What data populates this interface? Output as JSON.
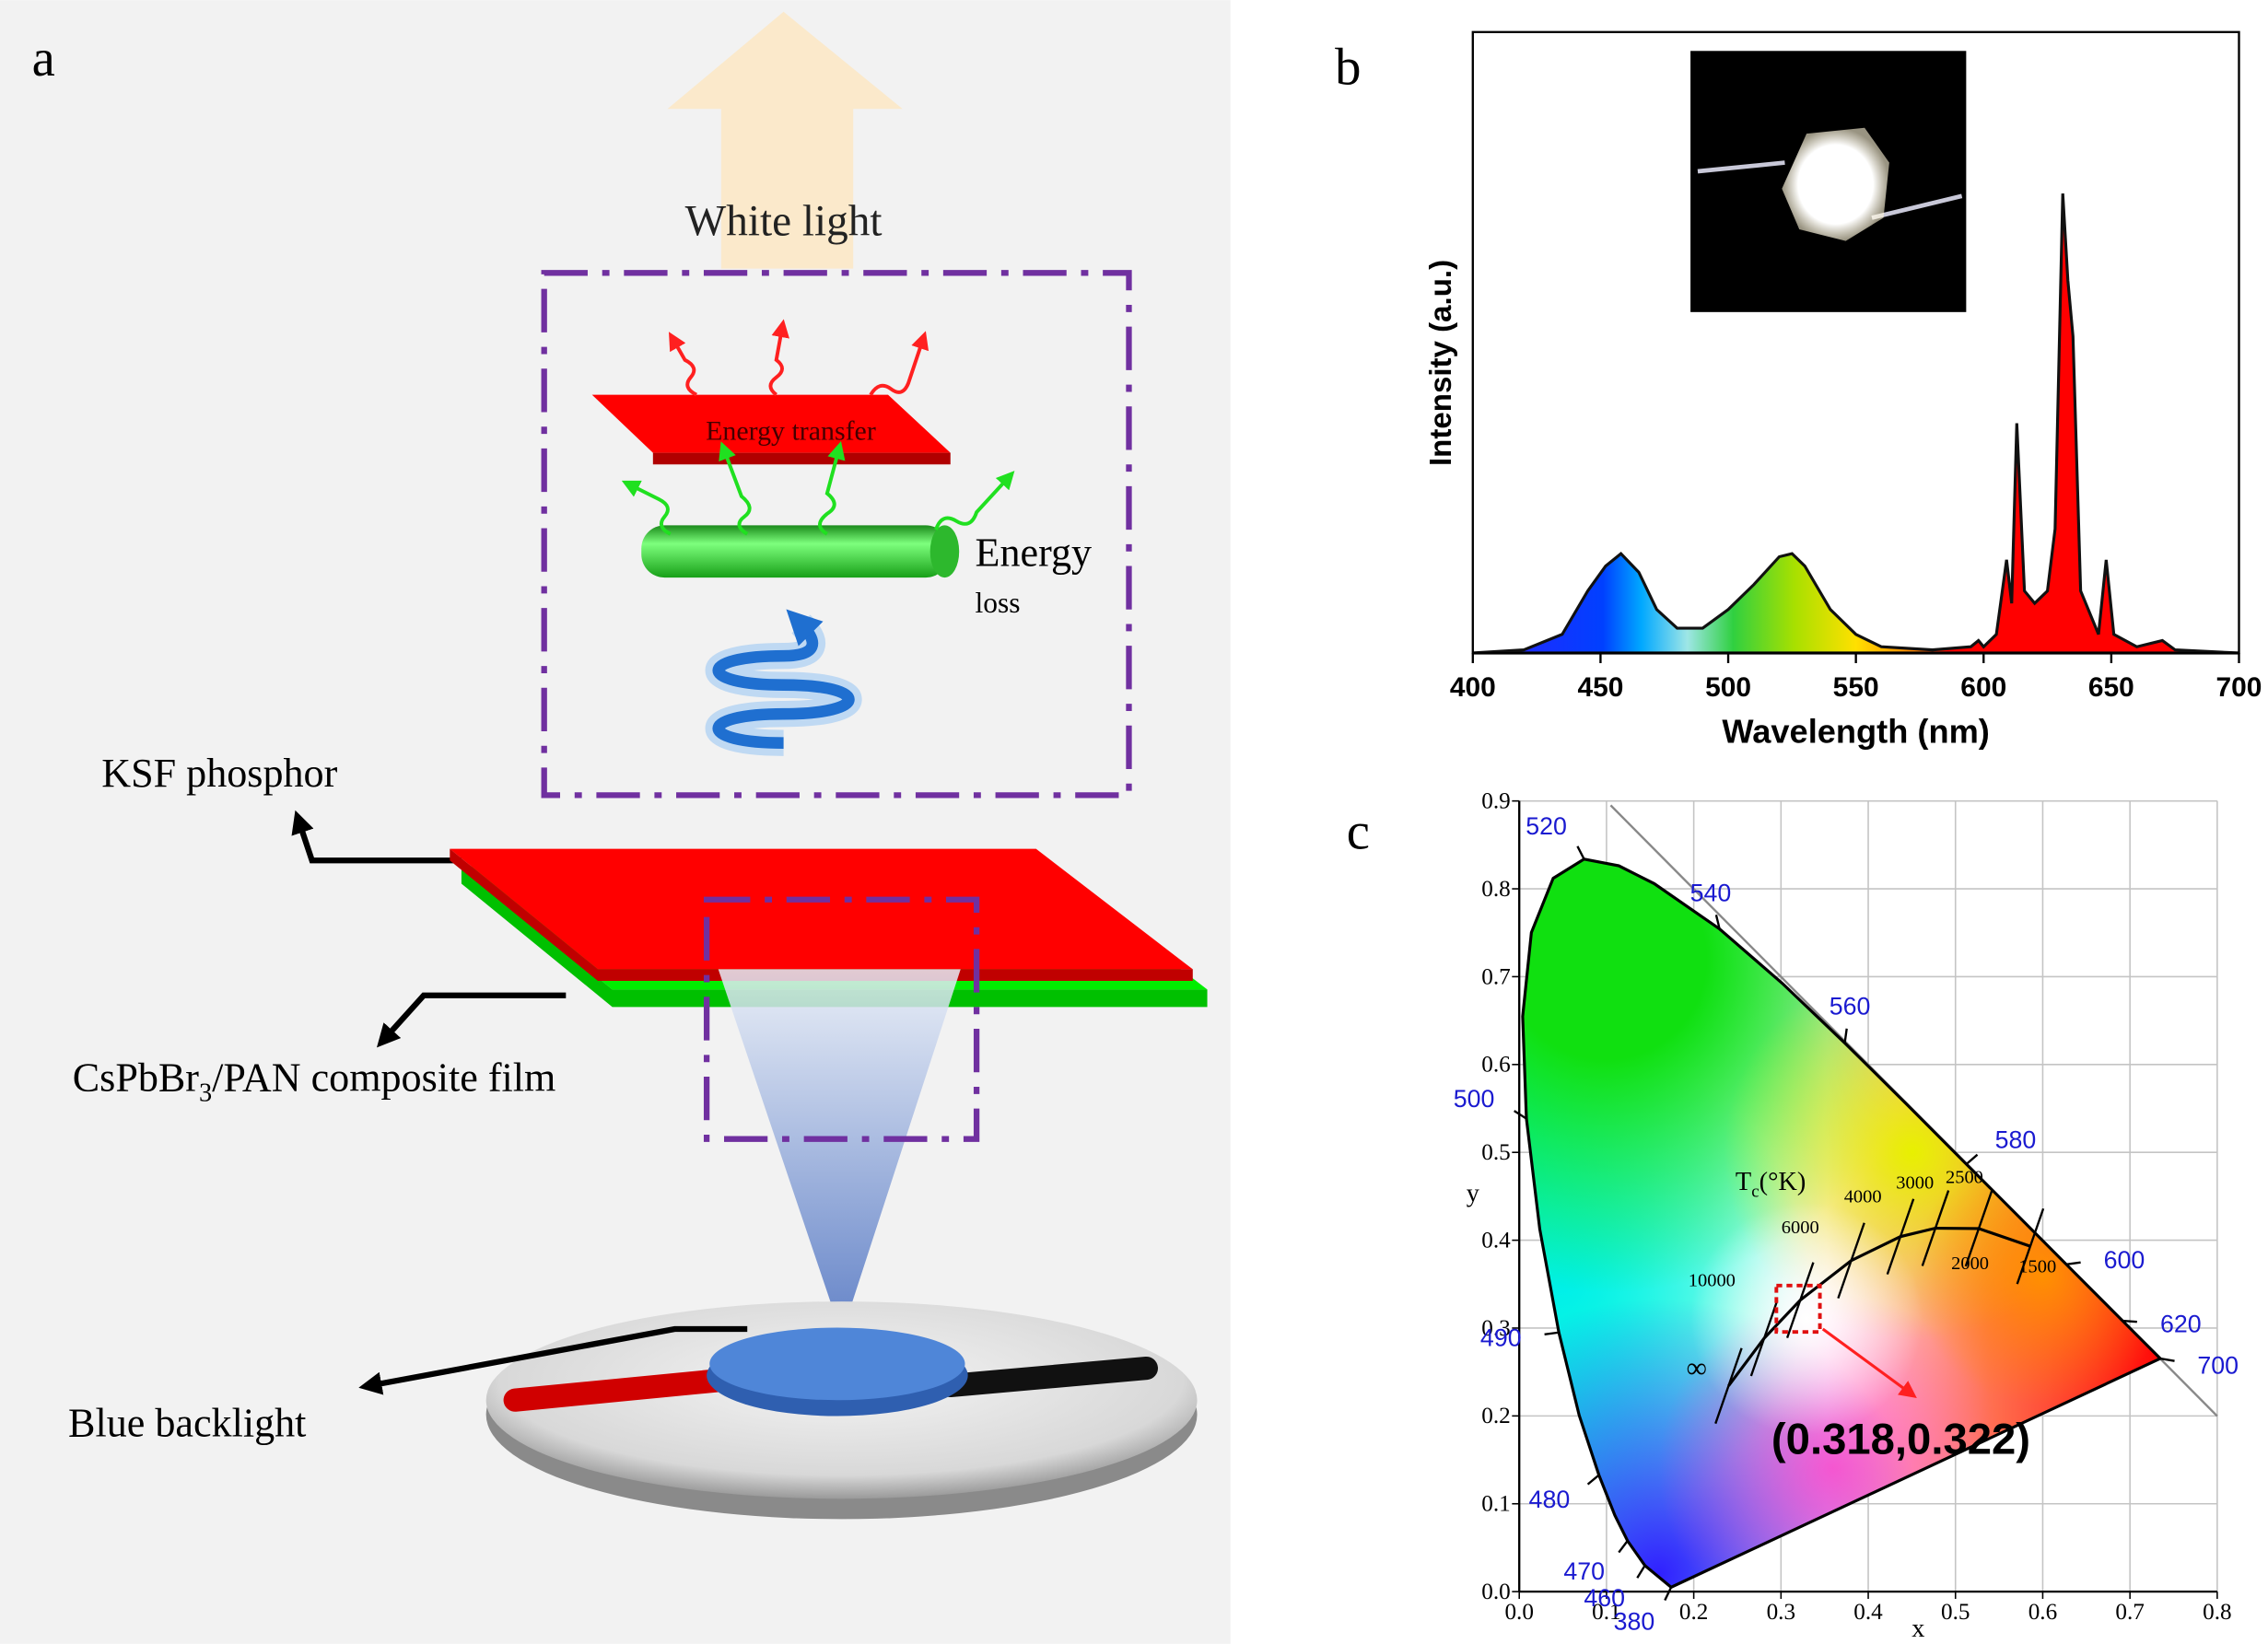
{
  "diagram": {
    "label": "a",
    "white_light": "White light",
    "energy_transfer": "Energy transfer",
    "energy": "Energy",
    "loss": "loss",
    "ksf": "KSF phosphor",
    "film": {
      "main": "CsPbBr",
      "sub": "3",
      "rest": "/PAN composite film"
    },
    "backlight": "Blue backlight"
  },
  "chart_data": [
    {
      "type": "area",
      "label": "b",
      "xlabel": "Wavelength (nm)",
      "ylabel": "Intensity (a.u.)",
      "x": [
        400,
        420,
        435,
        445,
        452,
        458,
        465,
        472,
        480,
        490,
        500,
        510,
        520,
        525,
        530,
        540,
        550,
        560,
        580,
        595,
        598,
        600,
        605,
        609,
        611,
        613,
        616,
        620,
        625,
        628,
        631,
        633,
        635,
        638,
        645,
        648,
        651,
        660,
        670,
        675,
        700
      ],
      "values": [
        0,
        0.005,
        0.03,
        0.1,
        0.14,
        0.16,
        0.13,
        0.07,
        0.04,
        0.04,
        0.07,
        0.11,
        0.155,
        0.16,
        0.14,
        0.07,
        0.03,
        0.01,
        0.005,
        0.01,
        0.02,
        0.01,
        0.03,
        0.15,
        0.08,
        0.37,
        0.1,
        0.08,
        0.1,
        0.2,
        0.74,
        0.6,
        0.51,
        0.1,
        0.03,
        0.15,
        0.03,
        0.01,
        0.02,
        0.005,
        0
      ],
      "color": "#111111",
      "xlim": [
        400,
        700
      ],
      "xticks": [
        400,
        450,
        500,
        550,
        600,
        650,
        700
      ],
      "ylim": [
        0,
        1
      ]
    },
    {
      "type": "chromaticity",
      "label": "c",
      "xlabel": "x",
      "ylabel": "y",
      "xlim": [
        0,
        0.8
      ],
      "ylim": [
        0,
        0.9
      ],
      "xticks": [
        {
          "value": 0,
          "label": "0.0"
        },
        0.1,
        0.2,
        0.3,
        0.4,
        0.5,
        0.6,
        0.7,
        0.8
      ],
      "yticks": [
        {
          "value": 0,
          "label": "0.0"
        },
        0.1,
        0.2,
        0.3,
        0.4,
        0.5,
        0.6,
        0.7,
        0.8,
        0.9
      ],
      "grid": true,
      "locus": {
        "x": [
          0.1741,
          0.144,
          0.1241,
          0.1096,
          0.0913,
          0.0687,
          0.0454,
          0.0235,
          0.0082,
          0.0039,
          0.0139,
          0.0389,
          0.0743,
          0.1142,
          0.1547,
          0.2296,
          0.3016,
          0.3731,
          0.4441,
          0.5125,
          0.5752,
          0.627,
          0.6915,
          0.7347
        ],
        "y": [
          0.005,
          0.0297,
          0.0578,
          0.0868,
          0.1327,
          0.2007,
          0.295,
          0.4127,
          0.5384,
          0.6548,
          0.7502,
          0.812,
          0.8338,
          0.8262,
          0.8059,
          0.7543,
          0.6923,
          0.6245,
          0.5547,
          0.4866,
          0.4242,
          0.3725,
          0.3083,
          0.2653
        ],
        "labels": [
          380,
          460,
          470,
          null,
          480,
          null,
          490,
          null,
          500,
          null,
          null,
          null,
          520,
          null,
          null,
          540,
          null,
          560,
          null,
          580,
          null,
          600,
          620,
          700
        ]
      },
      "planckian": {
        "title": {
          "main": "T",
          "sub": "c",
          "rest": "(°K)"
        },
        "labels": [
          "∞",
          "10000",
          "6000",
          "4000",
          "3000",
          "2500",
          "2000",
          "1500"
        ],
        "x": [
          0.2399,
          0.2807,
          0.3221,
          0.3805,
          0.4369,
          0.477,
          0.5267,
          0.5857
        ],
        "y": [
          0.2342,
          0.2884,
          0.3318,
          0.3768,
          0.4041,
          0.4137,
          0.4133,
          0.3931
        ]
      },
      "point": {
        "x": 0.318,
        "y": 0.322,
        "label": "(0.318,0.322)"
      }
    }
  ]
}
